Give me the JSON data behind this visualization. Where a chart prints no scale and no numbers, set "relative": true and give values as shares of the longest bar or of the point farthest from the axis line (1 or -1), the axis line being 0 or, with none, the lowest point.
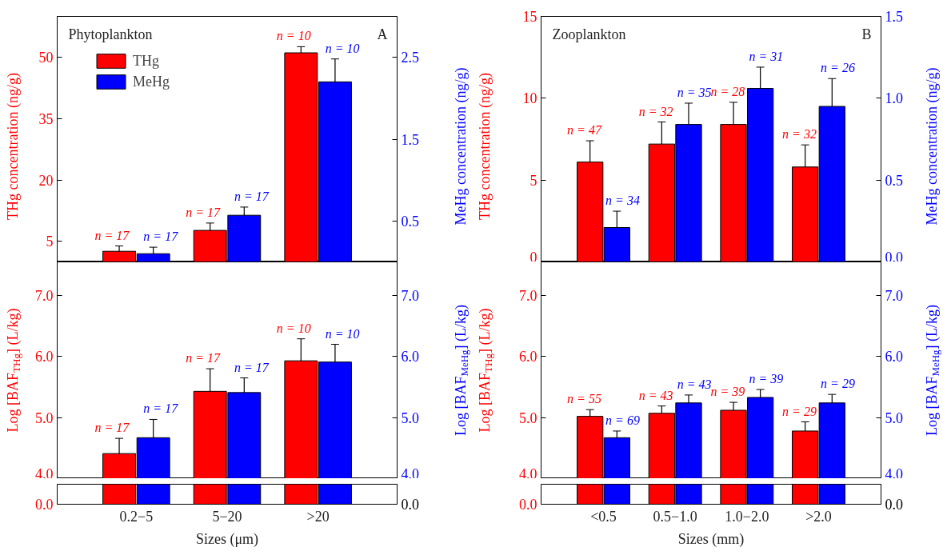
{
  "chart_data": [
    {
      "type": "bar",
      "title": "Phytoplankton",
      "ylabel": "THg concentration (ng/g)",
      "y2label": "MeHg concentration (ng/g)",
      "categories": [
        null,
        null,
        null
      ],
      "ylim": [
        0,
        60
      ],
      "yticks": [
        5,
        20,
        35,
        50
      ],
      "y2lim": [
        0,
        3
      ],
      "y2ticks": [
        0.5,
        1.5,
        2.5
      ],
      "tick_labels": "y",
      "legend": "top left",
      "series": [
        {
          "name": "THg",
          "color": "#ff0000",
          "values": [
            2.6,
            7.7,
            51.1
          ],
          "errors": [
            1.3,
            1.8,
            1.5
          ]
        },
        {
          "name": "MeHg",
          "color": "#0000ff",
          "axis": "y2",
          "values": [
            0.1,
            0.57,
            2.2
          ],
          "errors": [
            0.08,
            0.1,
            0.28
          ]
        }
      ],
      "annotations": [
        "A",
        "n = 17",
        "n = 17",
        "n = 10",
        "n = 17",
        "n = 17",
        "n = 10"
      ]
    },
    {
      "type": "bar",
      "ylabel": "Log [BAF$_{THg}$] (L/kg)",
      "y2label": "Log [BAF$_{MeHg}$] (L/kg)",
      "categories": [
        null,
        null,
        null
      ],
      "ylim": [
        4.0,
        7.55
      ],
      "yticks": [
        {
          "value": 4,
          "label": "4.0"
        },
        {
          "value": 5,
          "label": "5.0"
        },
        {
          "value": 6,
          "label": "6.0"
        },
        {
          "value": 7,
          "label": "7.0"
        }
      ],
      "y2lim": [
        4.0,
        7.55
      ],
      "y2ticks": [
        {
          "value": 4,
          "label": "4.0"
        },
        {
          "value": 5,
          "label": "5.0"
        },
        {
          "value": 6,
          "label": "6.0"
        },
        {
          "value": 7,
          "label": "7.0"
        }
      ],
      "tick_labels": "y",
      "series": [
        {
          "color": "#ff0000",
          "values": [
            4.41,
            5.43,
            5.93
          ],
          "errors": [
            0.25,
            0.37,
            0.36
          ]
        },
        {
          "color": "#0000ff",
          "axis": "y2",
          "values": [
            4.67,
            5.41,
            5.91
          ],
          "errors": [
            0.3,
            0.24,
            0.29
          ]
        }
      ],
      "annotations": [
        "n = 17",
        "n = 17",
        "n = 10",
        "n = 17",
        "n = 17",
        "n = 10"
      ]
    },
    {
      "type": "bar",
      "relative": true,
      "xlabel": "Sizes (μm)",
      "annotations": [
        "0.0",
        "0.0"
      ],
      "categories": [
        "0.2−5",
        "5−20",
        ">20"
      ],
      "tick_labels": "x",
      "series": [
        {
          "color": "#ff0000",
          "values": [
            1,
            1,
            1
          ]
        },
        {
          "color": "#0000ff",
          "values": [
            1,
            1,
            1
          ]
        }
      ]
    },
    {
      "type": "bar",
      "title": "Zooplankton",
      "ylabel": "THg concentration (ng/g)",
      "y2label": "MeHg concentration (ng/g)",
      "categories": [
        null,
        null,
        null,
        null
      ],
      "ylim": [
        0,
        15
      ],
      "yticks": [
        0,
        5,
        10,
        15
      ],
      "y2lim": [
        0,
        1.5
      ],
      "y2ticks": [
        {
          "value": 0,
          "label": "0.0"
        },
        0.5,
        {
          "value": 1,
          "label": "1.0"
        },
        1.5
      ],
      "tick_labels": "y",
      "series": [
        {
          "color": "#ff0000",
          "values": [
            6.1,
            7.2,
            8.4,
            5.8
          ],
          "errors": [
            1.3,
            1.35,
            1.35,
            1.35
          ]
        },
        {
          "color": "#0000ff",
          "axis": "y2",
          "values": [
            0.21,
            0.84,
            1.06,
            0.95
          ],
          "errors": [
            0.1,
            0.13,
            0.13,
            0.17
          ]
        }
      ],
      "annotations": [
        "B",
        "n = 47",
        "n = 32",
        "n = 28",
        "n = 32",
        "n = 34",
        "n = 35",
        "n = 31",
        "n = 26"
      ]
    },
    {
      "type": "bar",
      "ylabel": "Log [BAF$_{THg}$] (L/kg)",
      "y2label": "Log [BAF$_{MeHg}$] (L/kg)",
      "categories": [
        null,
        null,
        null,
        null
      ],
      "ylim": [
        4.0,
        7.55
      ],
      "yticks": [
        {
          "value": 4,
          "label": "4.0"
        },
        {
          "value": 5,
          "label": "5.0"
        },
        {
          "value": 6,
          "label": "6.0"
        },
        {
          "value": 7,
          "label": "7.0"
        }
      ],
      "y2lim": [
        4.0,
        7.55
      ],
      "y2ticks": [
        {
          "value": 4,
          "label": "4.0"
        },
        {
          "value": 5,
          "label": "5.0"
        },
        {
          "value": 6,
          "label": "6.0"
        },
        {
          "value": 7,
          "label": "7.0"
        }
      ],
      "tick_labels": "y",
      "series": [
        {
          "color": "#ff0000",
          "values": [
            5.02,
            5.07,
            5.12,
            4.78
          ],
          "errors": [
            0.11,
            0.12,
            0.13,
            0.15
          ]
        },
        {
          "color": "#0000ff",
          "axis": "y2",
          "values": [
            4.67,
            5.24,
            5.33,
            5.24
          ],
          "errors": [
            0.11,
            0.13,
            0.13,
            0.14
          ]
        }
      ],
      "annotations": [
        "n = 55",
        "n = 43",
        "n = 39",
        "n = 29",
        "n = 69",
        "n = 43",
        "n = 39",
        "n = 29"
      ]
    },
    {
      "type": "bar",
      "relative": true,
      "xlabel": "Sizes (mm)",
      "annotations": [
        "0.0",
        "0.0"
      ],
      "categories": [
        "<0.5",
        "0.5−1.0",
        "1.0−2.0",
        ">2.0"
      ],
      "tick_labels": "x",
      "series": [
        {
          "color": "#ff0000",
          "values": [
            1,
            1,
            1,
            1
          ]
        },
        {
          "color": "#0000ff",
          "values": [
            1,
            1,
            1,
            1
          ]
        }
      ]
    }
  ]
}
